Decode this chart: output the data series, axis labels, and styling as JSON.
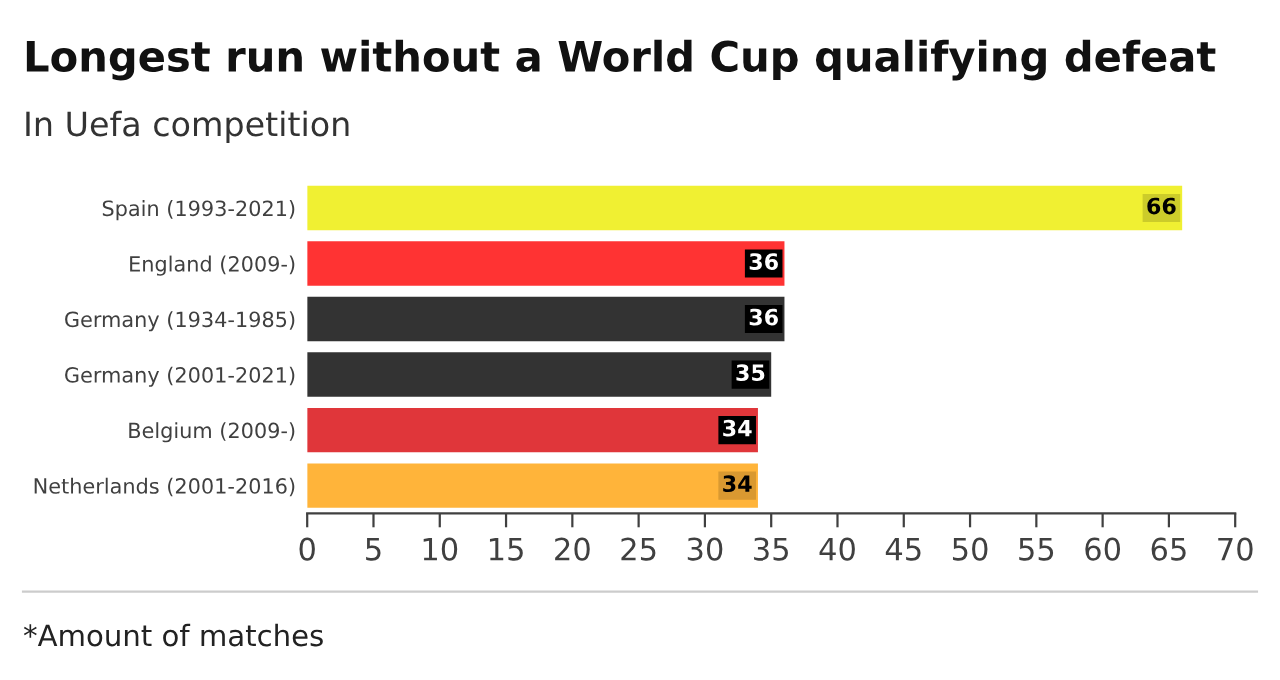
{
  "chart_data": {
    "type": "bar",
    "orientation": "horizontal",
    "title": "Longest run without a World Cup qualifying defeat",
    "subtitle": "In Uefa competition",
    "categories": [
      "Spain (1993-2021)",
      "England (2009-)",
      "Germany (1934-1985)",
      "Germany (2001-2021)",
      "Belgium (2009-)",
      "Netherlands (2001-2016)"
    ],
    "values": [
      66,
      36,
      36,
      35,
      34,
      34
    ],
    "colors": [
      "#f0f032",
      "#ff3333",
      "#333333",
      "#333333",
      "#e0363a",
      "#ffb43a"
    ],
    "data_labels": true,
    "xlim": [
      0,
      70
    ],
    "xticks": [
      0,
      5,
      10,
      15,
      20,
      25,
      30,
      35,
      40,
      45,
      50,
      55,
      60,
      65,
      70
    ],
    "grid": false,
    "legend": false,
    "annotations": [
      "*Amount of matches"
    ]
  }
}
